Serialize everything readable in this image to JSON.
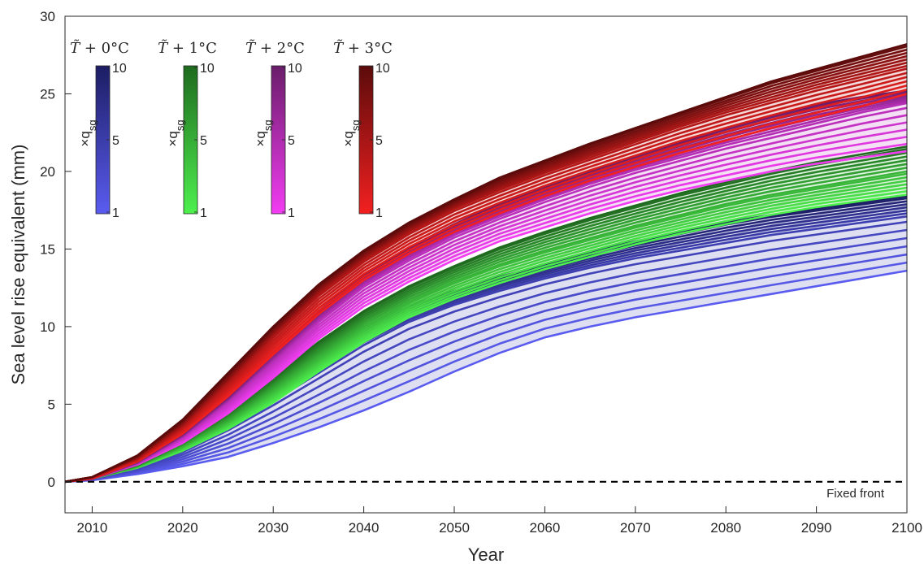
{
  "chart_data": {
    "type": "line",
    "title": "",
    "xlabel": "Year",
    "ylabel": "Sea level rise equivalent (mm)",
    "xlim": [
      2007,
      2100
    ],
    "ylim": [
      -2,
      30
    ],
    "xticks": [
      2010,
      2020,
      2030,
      2040,
      2050,
      2060,
      2070,
      2080,
      2090,
      2100
    ],
    "yticks": [
      0,
      5,
      10,
      15,
      20,
      25,
      30
    ],
    "grid": false,
    "x": [
      2007,
      2010,
      2015,
      2020,
      2025,
      2030,
      2035,
      2040,
      2045,
      2050,
      2055,
      2060,
      2065,
      2070,
      2075,
      2080,
      2085,
      2090,
      2095,
      2100
    ],
    "groups": [
      {
        "name": "T̃ + 0°C",
        "color_low": "#5a5cf0",
        "color_high": "#1c1d63",
        "fill": "#d8d9ee",
        "series": [
          {
            "name": "×q_sg = 1",
            "values": [
              0,
              0.1,
              0.5,
              1.0,
              1.6,
              2.5,
              3.5,
              4.6,
              5.8,
              7.1,
              8.3,
              9.3,
              10.0,
              10.6,
              11.1,
              11.6,
              12.1,
              12.6,
              13.1,
              13.6
            ]
          },
          {
            "name": "×q_sg = 5",
            "values": [
              0,
              0.2,
              0.9,
              2.0,
              3.5,
              5.2,
              7.0,
              8.8,
              10.3,
              11.4,
              12.3,
              13.1,
              13.8,
              14.4,
              14.9,
              15.4,
              15.9,
              16.3,
              16.7,
              17.1
            ]
          },
          {
            "name": "×q_sg = 10",
            "values": [
              0,
              0.2,
              1.1,
              2.5,
              4.3,
              6.3,
              8.3,
              10.0,
              11.3,
              12.3,
              13.2,
              14.0,
              14.8,
              15.5,
              16.1,
              16.7,
              17.2,
              17.6,
              18.0,
              18.4
            ]
          }
        ]
      },
      {
        "name": "T̃ + 1°C",
        "color_low": "#4df04d",
        "color_high": "#1f6a1f",
        "fill": "#d9efd9",
        "series": [
          {
            "name": "×q_sg = 1",
            "values": [
              0,
              0.2,
              0.9,
              2.0,
              3.4,
              5.1,
              7.1,
              9.0,
              10.6,
              11.8,
              12.8,
              13.7,
              14.5,
              15.3,
              16.0,
              16.6,
              17.2,
              17.7,
              18.1,
              18.5
            ]
          },
          {
            "name": "×q_sg = 5",
            "values": [
              0,
              0.2,
              1.0,
              2.3,
              3.9,
              5.9,
              8.0,
              10.0,
              11.6,
              12.9,
              14.0,
              14.9,
              15.7,
              16.5,
              17.2,
              17.9,
              18.5,
              19.0,
              19.5,
              20.0
            ]
          },
          {
            "name": "×q_sg = 10",
            "values": [
              0,
              0.2,
              1.1,
              2.6,
              4.5,
              6.7,
              9.0,
              11.0,
              12.6,
              13.9,
              15.1,
              16.1,
              17.0,
              17.8,
              18.6,
              19.3,
              20.0,
              20.6,
              21.1,
              21.6
            ]
          }
        ]
      },
      {
        "name": "T̃ + 2°C",
        "color_low": "#f23cf2",
        "color_high": "#6a1d6a",
        "fill": "#f2dbf2",
        "series": [
          {
            "name": "×q_sg = 1",
            "values": [
              0,
              0.2,
              1.1,
              2.5,
              4.4,
              6.7,
              9.2,
              11.3,
              12.9,
              14.3,
              15.5,
              16.4,
              17.3,
              18.1,
              18.8,
              19.4,
              20.0,
              20.5,
              20.9,
              21.3
            ]
          },
          {
            "name": "×q_sg = 5",
            "values": [
              0,
              0.2,
              1.2,
              2.9,
              5.2,
              7.8,
              10.4,
              12.7,
              14.4,
              15.9,
              17.1,
              18.2,
              19.2,
              20.1,
              20.9,
              21.7,
              22.4,
              23.1,
              23.8,
              24.4
            ]
          },
          {
            "name": "×q_sg = 10",
            "values": [
              0,
              0.2,
              1.3,
              3.1,
              5.5,
              8.3,
              11.0,
              13.3,
              15.1,
              16.6,
              17.9,
              19.0,
              20.0,
              21.0,
              21.9,
              22.8,
              23.6,
              24.3,
              24.8,
              25.2
            ]
          }
        ]
      },
      {
        "name": "T̃ + 3°C",
        "color_low": "#f22020",
        "color_high": "#5c0b0b",
        "fill": "#f2d2d2",
        "series": [
          {
            "name": "×q_sg = 1",
            "values": [
              0,
              0.2,
              1.3,
              3.1,
              5.5,
              8.2,
              10.8,
              13.0,
              14.7,
              16.1,
              17.3,
              18.4,
              19.4,
              20.3,
              21.2,
              22.0,
              22.8,
              23.5,
              24.2,
              25.0
            ]
          },
          {
            "name": "×q_sg = 5",
            "values": [
              0,
              0.3,
              1.5,
              3.6,
              6.4,
              9.4,
              12.1,
              14.3,
              16.1,
              17.6,
              18.8,
              19.9,
              20.9,
              21.9,
              22.9,
              23.8,
              24.6,
              25.4,
              26.1,
              26.8
            ]
          },
          {
            "name": "×q_sg = 10",
            "values": [
              0,
              0.3,
              1.7,
              4.0,
              7.0,
              10.0,
              12.7,
              14.9,
              16.7,
              18.2,
              19.6,
              20.7,
              21.8,
              22.8,
              23.8,
              24.8,
              25.8,
              26.6,
              27.4,
              28.2
            ]
          }
        ]
      }
    ],
    "reference_line": {
      "name": "Fixed front",
      "y": 0,
      "style": "dashed",
      "color": "#000000"
    },
    "colorbars": [
      {
        "title_prefix": "T̃ + ",
        "title_value": "0°C",
        "label": "×q",
        "label_sub": "sg",
        "ticks": [
          "10",
          "5",
          "1"
        ],
        "color_low": "#5a5cf0",
        "color_high": "#1c1d63"
      },
      {
        "title_prefix": "T̃ + ",
        "title_value": "1°C",
        "label": "×q",
        "label_sub": "sg",
        "ticks": [
          "10",
          "5",
          "1"
        ],
        "color_low": "#4df04d",
        "color_high": "#1f6a1f"
      },
      {
        "title_prefix": "T̃ + ",
        "title_value": "2°C",
        "label": "×q",
        "label_sub": "sg",
        "ticks": [
          "10",
          "5",
          "1"
        ],
        "color_low": "#f23cf2",
        "color_high": "#6a1d6a"
      },
      {
        "title_prefix": "T̃ + ",
        "title_value": "3°C",
        "label": "×q",
        "label_sub": "sg",
        "ticks": [
          "10",
          "5",
          "1"
        ],
        "color_low": "#f22020",
        "color_high": "#5c0b0b"
      }
    ]
  }
}
